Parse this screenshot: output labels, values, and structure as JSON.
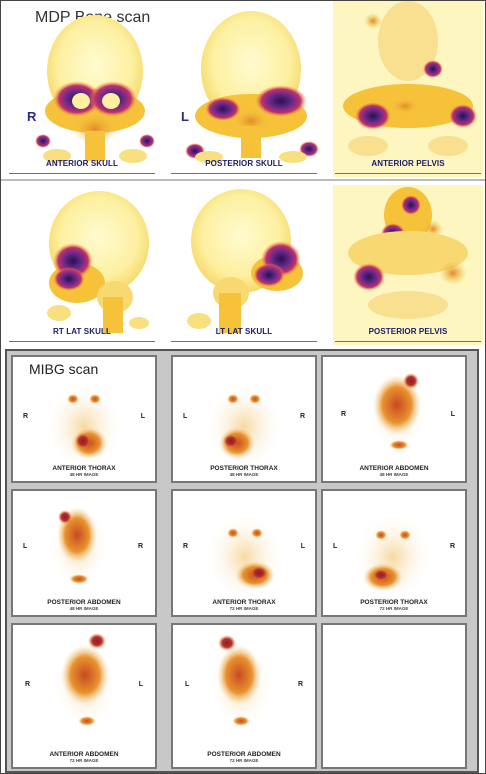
{
  "bone_scan": {
    "title": "MDP Bone scan",
    "side_left_marker": "R",
    "side_mid_marker": "L",
    "panels_top": [
      {
        "label": "ANTERIOR SKULL"
      },
      {
        "label": "POSTERIOR SKULL"
      },
      {
        "label": "ANTERIOR PELVIS"
      }
    ],
    "panels_bottom": [
      {
        "label": "RT LAT SKULL"
      },
      {
        "label": "LT LAT SKULL"
      },
      {
        "label": "POSTERIOR PELVIS"
      }
    ]
  },
  "mibg_scan": {
    "title": "MIBG scan",
    "cells": [
      {
        "label": "ANTERIOR THORAX",
        "sub": "48 HR IMAGE",
        "left": "R",
        "right": "L"
      },
      {
        "label": "POSTERIOR THORAX",
        "sub": "48 HR IMAGE",
        "left": "L",
        "right": "R"
      },
      {
        "label": "ANTERIOR ABDOMEN",
        "sub": "48 HR IMAGE",
        "left": "R",
        "right": "L"
      },
      {
        "label": "POSTERIOR ABDOMEN",
        "sub": "48 HR IMAGE",
        "left": "L",
        "right": "R"
      },
      {
        "label": "ANTERIOR THORAX",
        "sub": "72 HR IMAGE",
        "left": "R",
        "right": "L"
      },
      {
        "label": "POSTERIOR THORAX",
        "sub": "72 HR IMAGE",
        "left": "L",
        "right": "R"
      },
      {
        "label": "ANTERIOR ABDOMEN",
        "sub": "72 HR IMAGE",
        "left": "R",
        "right": "L"
      },
      {
        "label": "POSTERIOR ABDOMEN",
        "sub": "72 HR IMAGE",
        "left": "L",
        "right": "R"
      }
    ]
  },
  "colors": {
    "scan_low": "#fdf3a8",
    "scan_mid": "#f5c23a",
    "scan_high": "#c0306a",
    "scan_peak": "#2a1050",
    "mibg_low": "#f6d9a0",
    "mibg_mid": "#e8922e",
    "mibg_high": "#b8322a"
  }
}
